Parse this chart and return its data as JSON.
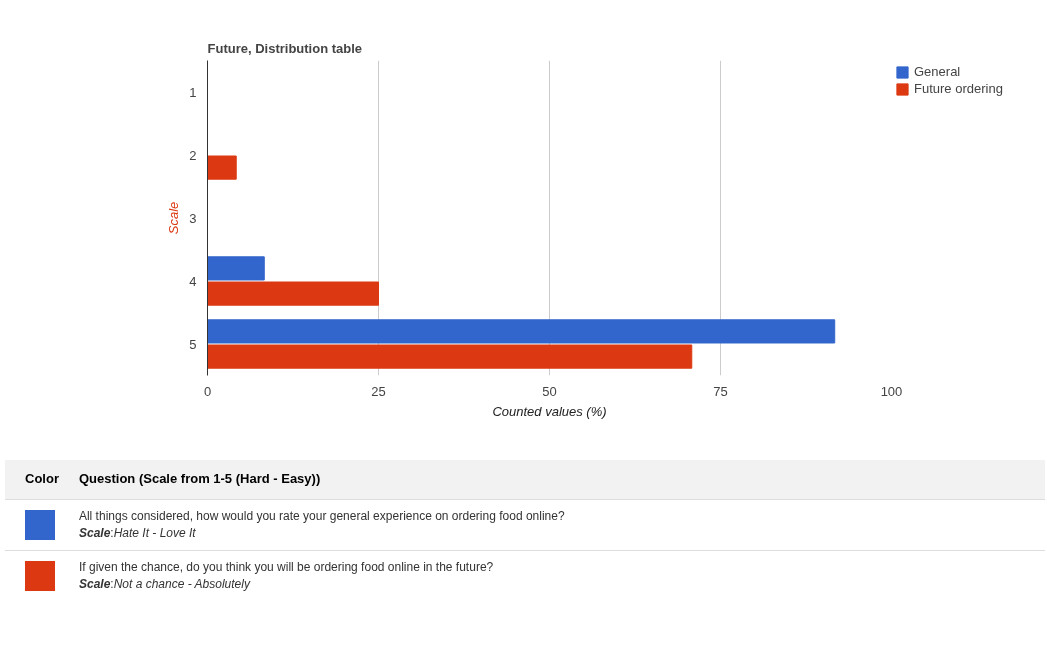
{
  "chart_data": {
    "type": "bar",
    "orientation": "horizontal",
    "title": "Future, Distribution table",
    "xlabel": "Counted values (%)",
    "ylabel": "Scale",
    "categories": [
      "1",
      "2",
      "3",
      "4",
      "5"
    ],
    "series": [
      {
        "name": "General",
        "color": "#3366cc",
        "values": [
          null,
          null,
          null,
          8.3,
          91.7
        ]
      },
      {
        "name": "Future ordering",
        "color": "#dc3912",
        "values": [
          null,
          4.2,
          null,
          25,
          70.8
        ]
      }
    ],
    "xlim": [
      0,
      100
    ],
    "xticks": [
      0,
      25,
      50,
      75,
      100
    ],
    "grid": "x",
    "legend": "top right",
    "annotations": [
      "Color",
      "Question (Scale from 1-5 (Hard - Easy))",
      "All things considered, how would you rate your general experience on ordering food online?",
      "Scale:Hate It - Love It",
      "If given the chance, do you think you will be ordering food online in the future?",
      "Scale:Not a chance - Absolutely"
    ]
  }
}
